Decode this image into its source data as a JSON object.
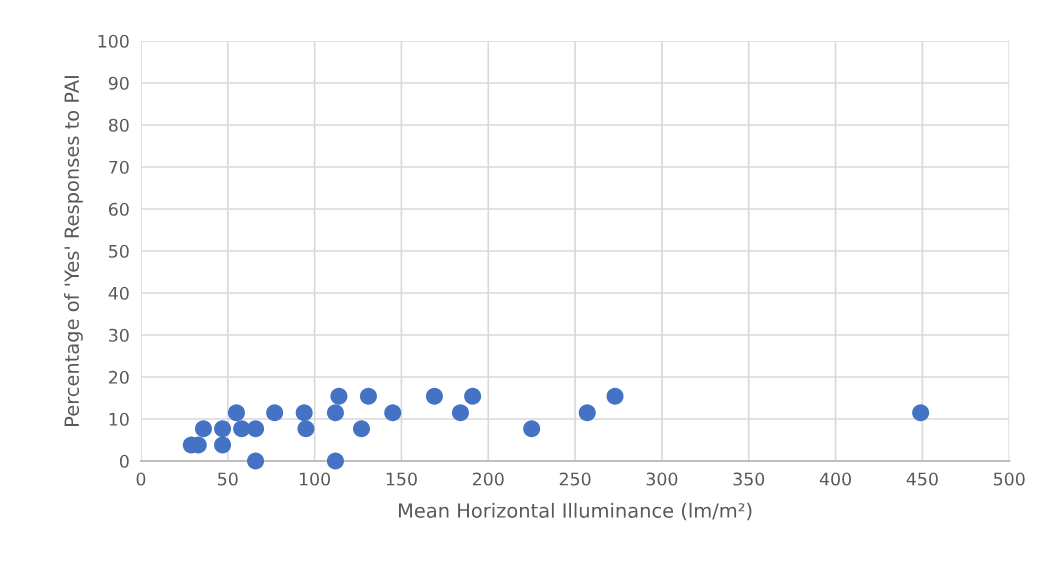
{
  "chart_data": {
    "type": "scatter",
    "xlabel": "Mean Horizontal Illuminance (lm/m²)",
    "ylabel": "Percentage of 'Yes' Responses to PAI",
    "x": [
      29,
      33,
      47,
      36,
      47,
      55,
      58,
      66,
      66,
      77,
      94,
      95,
      112,
      112,
      114,
      127,
      131,
      145,
      169,
      184,
      191,
      225,
      257,
      273,
      449
    ],
    "series": [
      {
        "color": "#4472c4",
        "values": [
          3.8,
          3.8,
          3.8,
          7.7,
          7.7,
          11.5,
          7.7,
          7.7,
          0,
          11.5,
          11.5,
          7.7,
          11.5,
          0,
          15.4,
          7.7,
          15.4,
          11.5,
          15.4,
          11.5,
          15.4,
          7.7,
          11.5,
          15.4,
          11.5
        ]
      }
    ],
    "xlim": [
      0,
      500
    ],
    "xticks": [
      0,
      50,
      100,
      150,
      200,
      250,
      300,
      350,
      400,
      450,
      500
    ],
    "ylim": [
      0,
      100
    ],
    "yticks": [
      0,
      10,
      20,
      30,
      40,
      50,
      60,
      70,
      80,
      90,
      100
    ],
    "grid": true,
    "marker": "circle",
    "legend": false
  }
}
